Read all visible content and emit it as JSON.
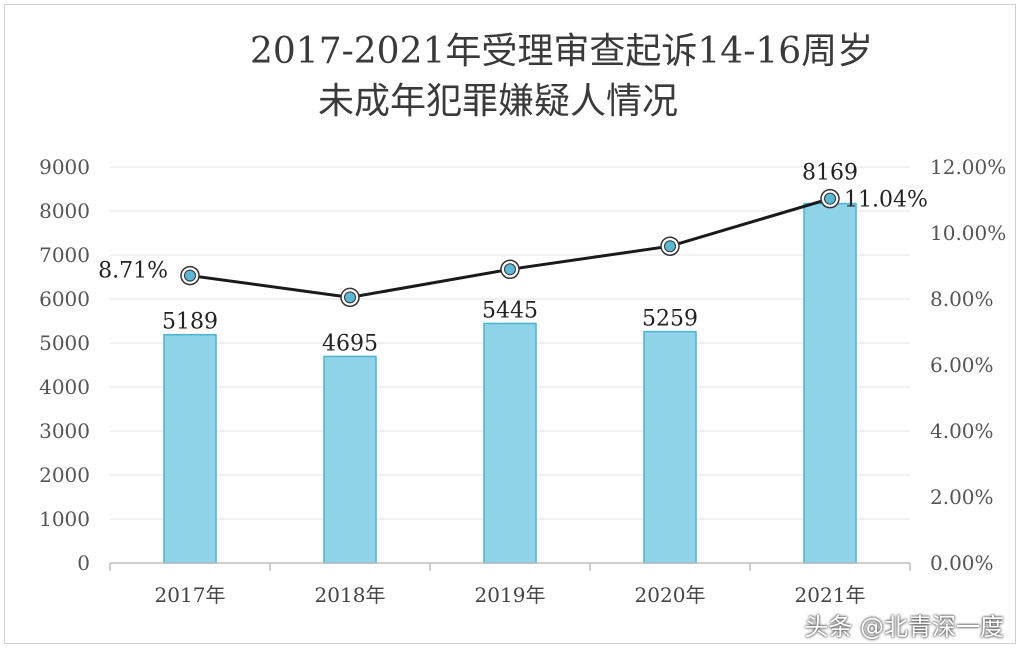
{
  "chart_data": {
    "type": "bar",
    "title_line1": "2017-2021年受理审查起诉14-16周岁",
    "title_line2": "未成年犯罪嫌疑人情况",
    "categories": [
      "2017年",
      "2018年",
      "2019年",
      "2020年",
      "2021年"
    ],
    "bars": {
      "values": [
        5189,
        4695,
        5445,
        5259,
        8169
      ],
      "labels": [
        "5189",
        "4695",
        "5445",
        "5259",
        "8169"
      ],
      "color": "#8fd3e8",
      "edge_color": "#4fb3d0"
    },
    "line": {
      "values": [
        8.71,
        8.05,
        8.9,
        9.6,
        11.04
      ],
      "point_labels": [
        "8.71%",
        "",
        "",
        "",
        "11.04%"
      ],
      "color": "#1a1a1a",
      "marker_color": "#5bb8d4"
    },
    "y_left": {
      "min": 0,
      "max": 9000,
      "ticks": [
        "0",
        "1000",
        "2000",
        "3000",
        "4000",
        "5000",
        "6000",
        "7000",
        "8000",
        "9000"
      ]
    },
    "y_right": {
      "min": 0,
      "max": 12,
      "ticks": [
        "0.00%",
        "2.00%",
        "4.00%",
        "6.00%",
        "8.00%",
        "10.00%",
        "12.00%"
      ]
    },
    "grid": true
  },
  "watermark": "头条 @北青深一度"
}
